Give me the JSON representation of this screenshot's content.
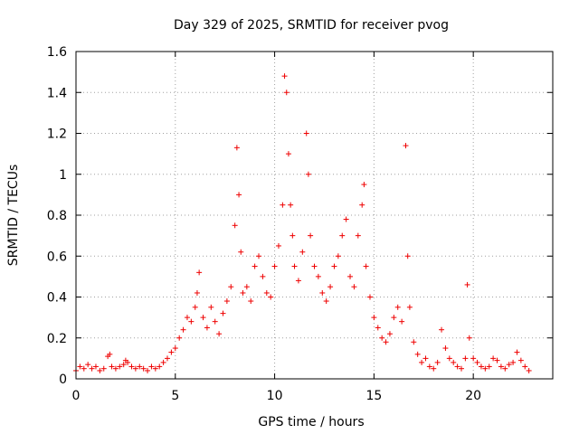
{
  "chart_data": {
    "type": "scatter",
    "title": "Day 329 of 2025, SRMTID for receiver pvog",
    "xlabel": "GPS time / hours",
    "ylabel": "SRMTID / TECUs",
    "xlim": [
      0,
      24
    ],
    "ylim": [
      0,
      1.6
    ],
    "xticks": [
      0,
      5,
      10,
      15,
      20
    ],
    "xtick_labels": [
      "0",
      "5",
      "10",
      "15",
      "20"
    ],
    "yticks": [
      0,
      0.2,
      0.4,
      0.6,
      0.8,
      1.0,
      1.2,
      1.4,
      1.6
    ],
    "ytick_labels": [
      "0",
      "0.2",
      "0.4",
      "0.6",
      "0.8",
      "1",
      "1.2",
      "1.4",
      "1.6"
    ],
    "grid": true,
    "marker": "+",
    "marker_color": "#ee0000",
    "series": [
      {
        "name": "SRMTID",
        "x": [
          0.0,
          0.2,
          0.4,
          0.6,
          0.8,
          1.0,
          1.2,
          1.4,
          1.6,
          1.7,
          1.8,
          2.0,
          2.2,
          2.4,
          2.5,
          2.6,
          2.8,
          3.0,
          3.2,
          3.4,
          3.6,
          3.8,
          4.0,
          4.2,
          4.4,
          4.6,
          4.8,
          5.0,
          5.2,
          5.4,
          5.6,
          5.8,
          6.0,
          6.1,
          6.2,
          6.4,
          6.6,
          6.8,
          7.0,
          7.2,
          7.4,
          7.6,
          7.8,
          8.0,
          8.1,
          8.2,
          8.3,
          8.4,
          8.6,
          8.8,
          9.0,
          9.2,
          9.4,
          9.6,
          9.8,
          10.0,
          10.2,
          10.4,
          10.5,
          10.6,
          10.7,
          10.8,
          10.9,
          11.0,
          11.2,
          11.4,
          11.6,
          11.7,
          11.8,
          12.0,
          12.2,
          12.4,
          12.6,
          12.8,
          13.0,
          13.2,
          13.4,
          13.6,
          13.8,
          14.0,
          14.2,
          14.4,
          14.5,
          14.6,
          14.8,
          15.0,
          15.2,
          15.4,
          15.6,
          15.8,
          16.0,
          16.2,
          16.4,
          16.6,
          16.7,
          16.8,
          17.0,
          17.2,
          17.4,
          17.6,
          17.8,
          18.0,
          18.2,
          18.4,
          18.6,
          18.8,
          19.0,
          19.2,
          19.4,
          19.6,
          19.7,
          19.8,
          20.0,
          20.2,
          20.4,
          20.6,
          20.8,
          21.0,
          21.2,
          21.4,
          21.6,
          21.8,
          22.0,
          22.2,
          22.4,
          22.6,
          22.8
        ],
        "y": [
          0.04,
          0.06,
          0.05,
          0.07,
          0.05,
          0.06,
          0.04,
          0.05,
          0.11,
          0.12,
          0.06,
          0.05,
          0.06,
          0.07,
          0.09,
          0.08,
          0.06,
          0.05,
          0.06,
          0.05,
          0.04,
          0.06,
          0.05,
          0.06,
          0.08,
          0.1,
          0.13,
          0.15,
          0.2,
          0.24,
          0.3,
          0.28,
          0.35,
          0.42,
          0.52,
          0.3,
          0.25,
          0.35,
          0.28,
          0.22,
          0.32,
          0.38,
          0.45,
          0.75,
          1.13,
          0.9,
          0.62,
          0.42,
          0.45,
          0.38,
          0.55,
          0.6,
          0.5,
          0.42,
          0.4,
          0.55,
          0.65,
          0.85,
          1.48,
          1.4,
          1.1,
          0.85,
          0.7,
          0.55,
          0.48,
          0.62,
          1.2,
          1.0,
          0.7,
          0.55,
          0.5,
          0.42,
          0.38,
          0.45,
          0.55,
          0.6,
          0.7,
          0.78,
          0.5,
          0.45,
          0.7,
          0.85,
          0.95,
          0.55,
          0.4,
          0.3,
          0.25,
          0.2,
          0.18,
          0.22,
          0.3,
          0.35,
          0.28,
          1.14,
          0.6,
          0.35,
          0.18,
          0.12,
          0.08,
          0.1,
          0.06,
          0.05,
          0.08,
          0.24,
          0.15,
          0.1,
          0.08,
          0.06,
          0.05,
          0.1,
          0.46,
          0.2,
          0.1,
          0.08,
          0.06,
          0.05,
          0.06,
          0.1,
          0.09,
          0.06,
          0.05,
          0.07,
          0.08,
          0.13,
          0.09,
          0.06,
          0.04
        ]
      }
    ]
  }
}
